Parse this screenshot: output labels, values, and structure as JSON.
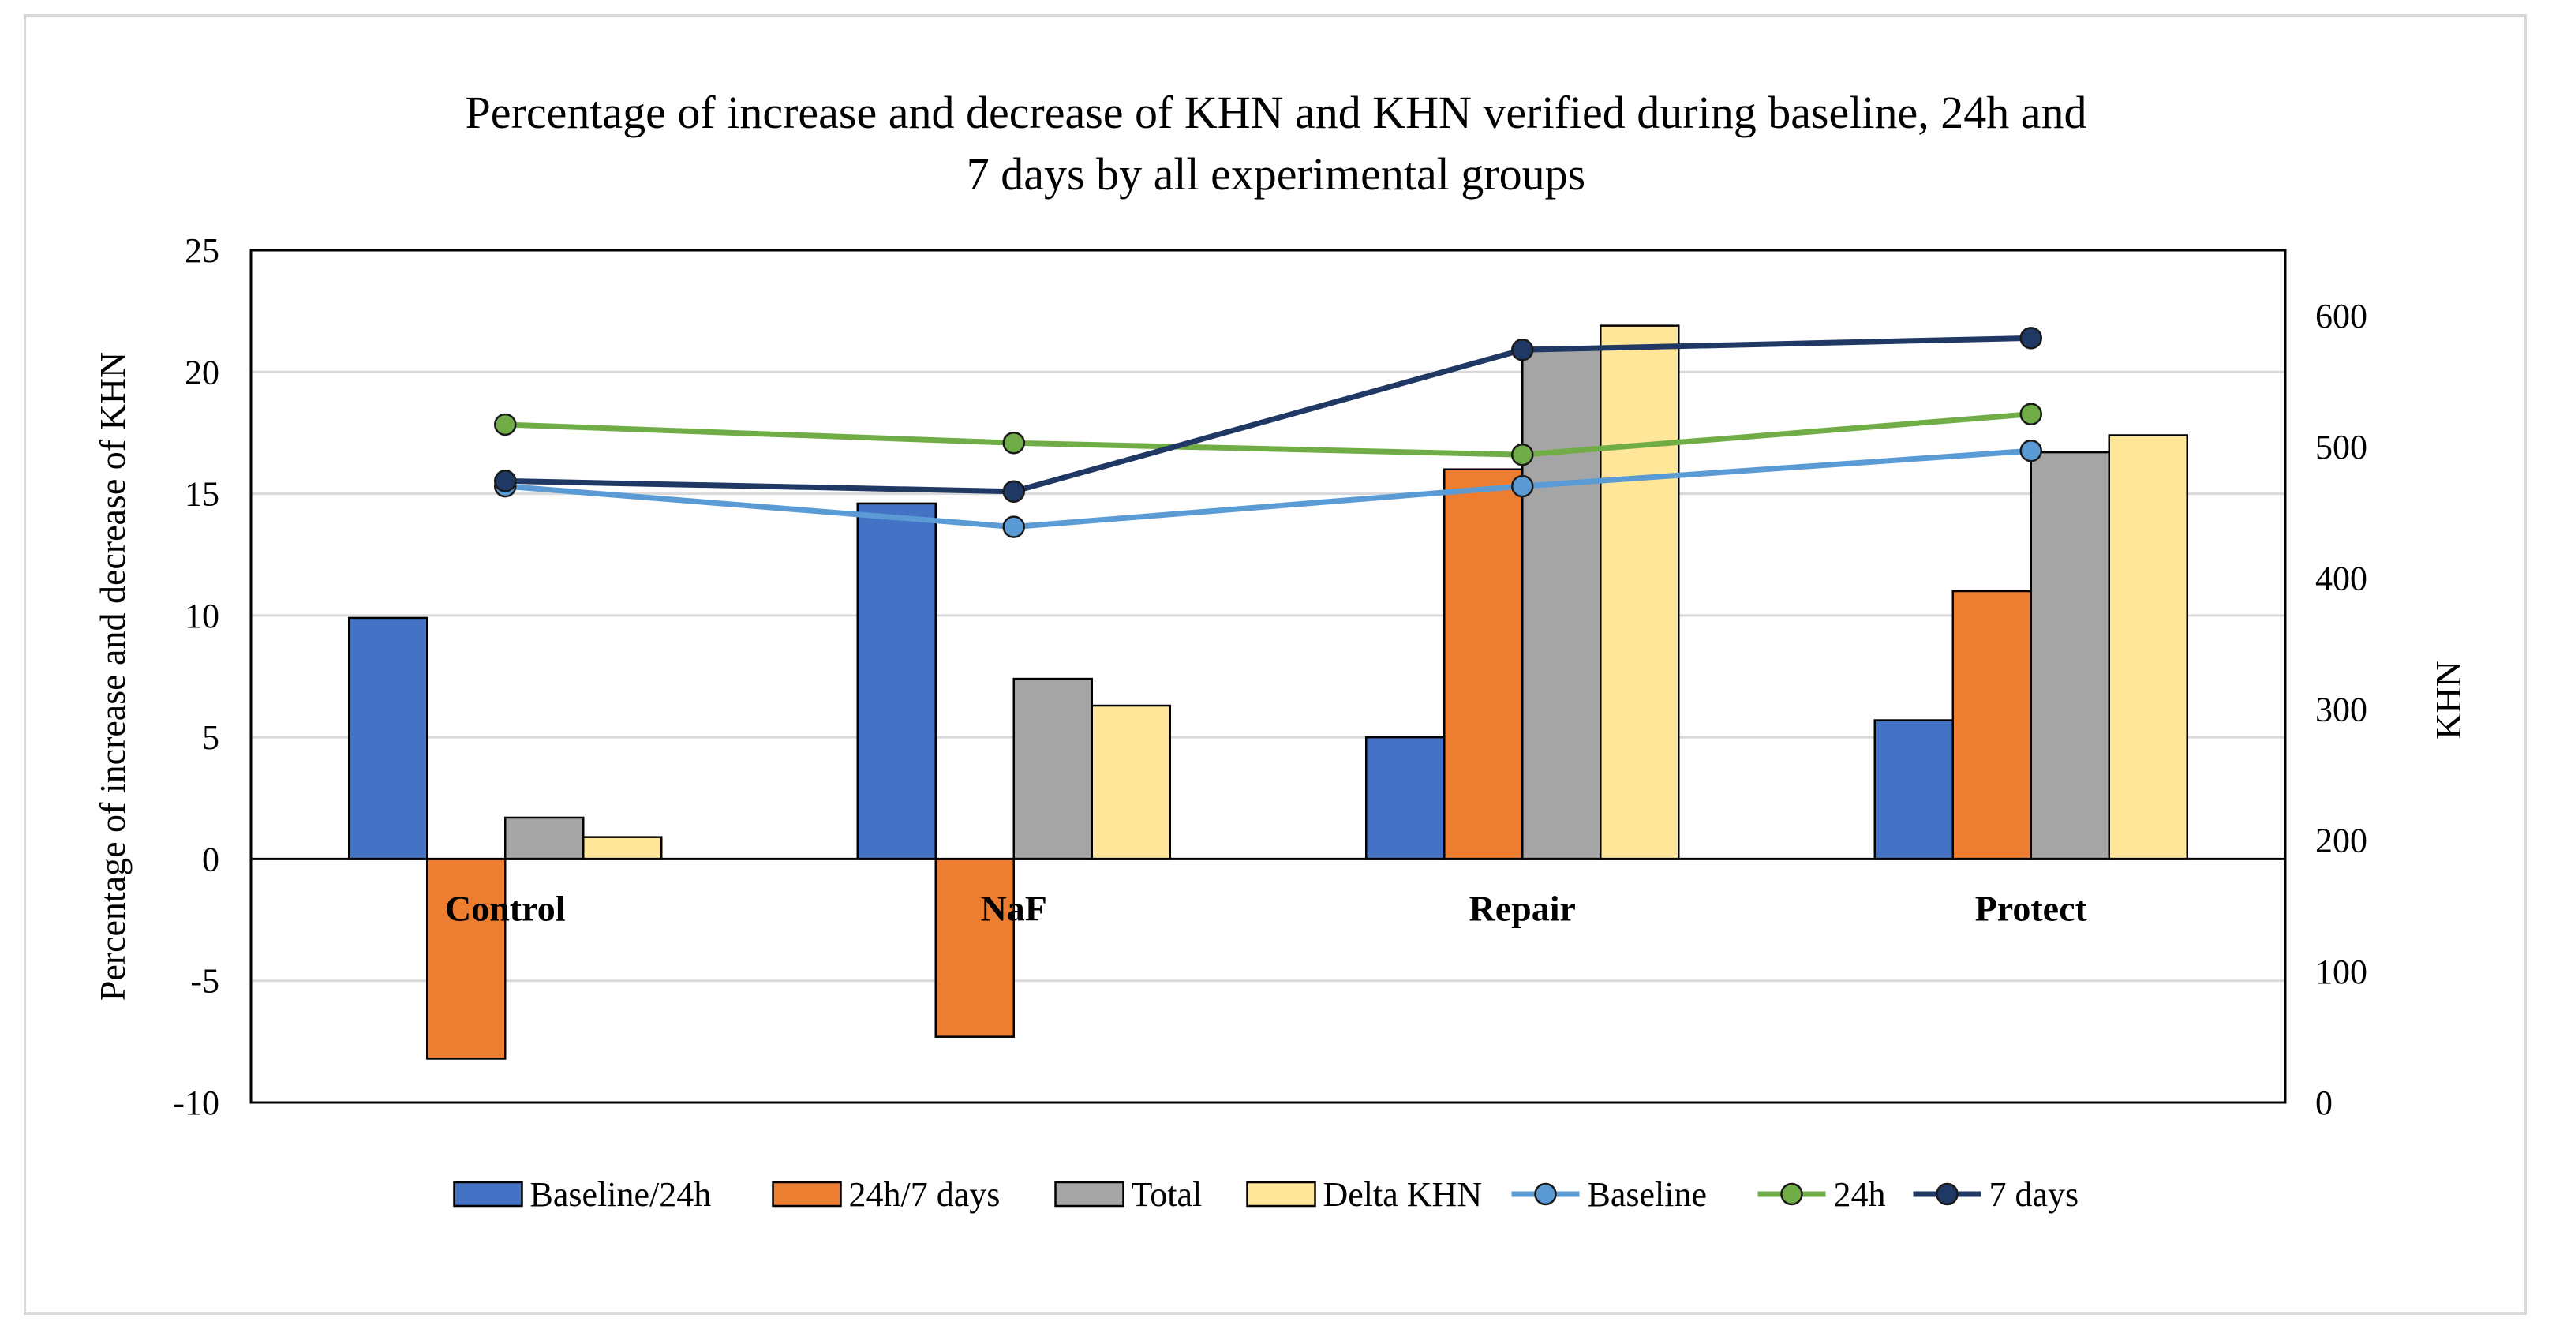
{
  "chart_data": {
    "type": "bar",
    "title_lines": [
      "Percentage of increase and decrease of KHN and KHN verified during baseline, 24h and",
      "7 days by all experimental groups"
    ],
    "ylabel": "Percentage of increase and decrease of KHN",
    "y2label": "KHN",
    "ylim": [
      -10,
      25
    ],
    "yticks": [
      25,
      20,
      15,
      10,
      5,
      0,
      -5,
      -10
    ],
    "y2lim": [
      0,
      650
    ],
    "y2ticks": [
      600,
      500,
      400,
      300,
      200,
      100,
      0
    ],
    "grid": true,
    "legend_position": "bottom",
    "categories": [
      "Control",
      "NaF",
      "Repair",
      "Protect"
    ],
    "bar_series": [
      {
        "name": "Baseline/24h",
        "color": "#4472c4",
        "values": [
          9.9,
          14.6,
          5.0,
          5.7
        ]
      },
      {
        "name": "24h/7 days",
        "color": "#ed7d31",
        "values": [
          -8.2,
          -7.3,
          16.0,
          11.0
        ]
      },
      {
        "name": "Total",
        "color": "#a5a5a5",
        "values": [
          1.7,
          7.4,
          21.0,
          16.7
        ]
      },
      {
        "name": "Delta KHN",
        "color": "#ffe699",
        "values": [
          0.9,
          6.3,
          21.9,
          17.4
        ]
      }
    ],
    "line_series": [
      {
        "name": "Baseline",
        "color": "#5b9bd5",
        "axis": "right",
        "values": [
          470,
          439,
          470,
          497
        ]
      },
      {
        "name": "24h",
        "color": "#70ad47",
        "axis": "right",
        "values": [
          517,
          503,
          494,
          525
        ]
      },
      {
        "name": "7 days",
        "color": "#1f3864",
        "axis": "right",
        "values": [
          474,
          466,
          574,
          583
        ]
      }
    ]
  }
}
